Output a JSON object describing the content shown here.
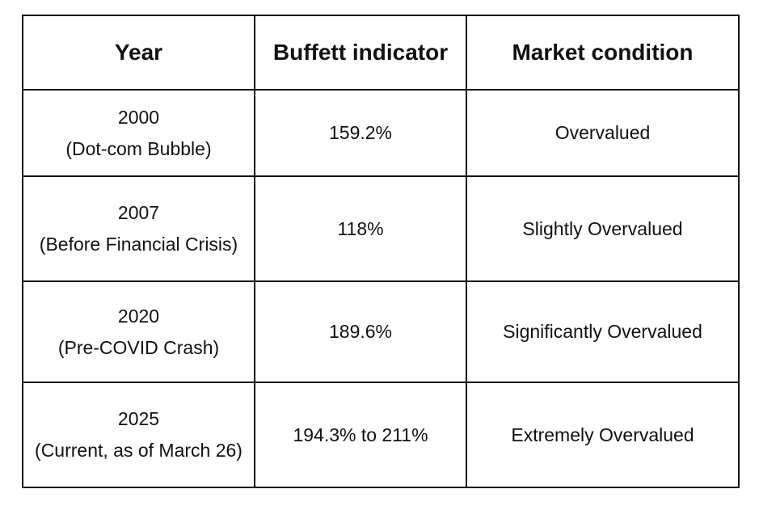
{
  "table": {
    "headers": [
      "Year",
      "Buffett indicator",
      "Market condition"
    ],
    "rows": [
      {
        "year": "2000",
        "note": "(Dot-com Bubble)",
        "indicator": "159.2%",
        "condition": "Overvalued"
      },
      {
        "year": "2007",
        "note": "(Before Financial Crisis)",
        "indicator": "118%",
        "condition": "Slightly Overvalued"
      },
      {
        "year": "2020",
        "note": "(Pre-COVID Crash)",
        "indicator": "189.6%",
        "condition": "Significantly Overvalued"
      },
      {
        "year": "2025",
        "note": "(Current, as of March 26)",
        "indicator": "194.3% to 211%",
        "condition": "Extremely Overvalued"
      }
    ]
  }
}
